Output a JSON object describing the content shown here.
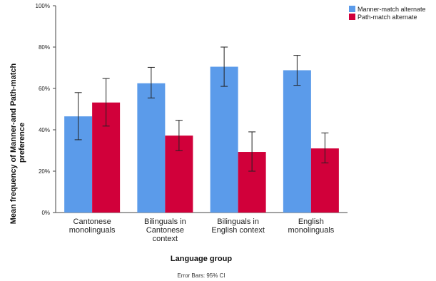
{
  "chart_data": {
    "type": "bar",
    "categories": [
      [
        "Cantonese",
        "monolinguals"
      ],
      [
        "Bilinguals in",
        "Cantonese",
        "context"
      ],
      [
        "Bilinguals in",
        "English context"
      ],
      [
        "English",
        "monolinguals"
      ]
    ],
    "series": [
      {
        "name": "Manner-match alternate",
        "color": "#5b9bea",
        "values": [
          46.5,
          62.5,
          70.5,
          68.8
        ],
        "ci_low": [
          35.2,
          55.4,
          61.0,
          61.5
        ],
        "ci_high": [
          58.0,
          70.2,
          80.0,
          76.0
        ]
      },
      {
        "name": "Path-match alternate",
        "color": "#d1003a",
        "values": [
          53.2,
          37.2,
          29.3,
          31.0
        ],
        "ci_low": [
          41.8,
          29.9,
          20.0,
          24.0
        ],
        "ci_high": [
          64.8,
          44.6,
          39.0,
          38.5
        ]
      }
    ],
    "ylim": [
      0,
      100
    ],
    "yticks": [
      0,
      20,
      40,
      60,
      80,
      100
    ],
    "ytick_labels": [
      "0%",
      "20%",
      "40%",
      "60%",
      "80%",
      "100%"
    ],
    "xlabel": "Language group",
    "ylabel": [
      "Mean frequency of Manner-and Path-match",
      "preference"
    ],
    "footnote": "Error Bars: 95% CI",
    "legend_position": "top-right",
    "grid": false
  }
}
